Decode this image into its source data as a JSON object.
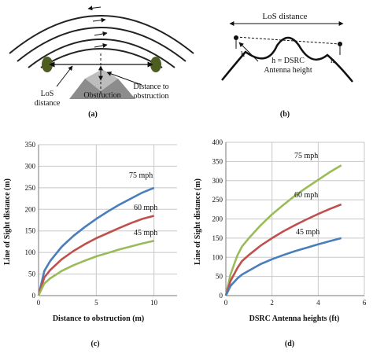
{
  "panel_a": {
    "los_distance_label": [
      "LoS",
      "distance"
    ],
    "obstruction_label": "Obstruction",
    "distance_to_obstruction_label": [
      "Distance to",
      "obstruction"
    ],
    "caption": "(a)"
  },
  "panel_b": {
    "los_distance_label": "LoS distance",
    "h_left": "h",
    "h_right": "h",
    "antenna_label": [
      "h = DSRC",
      "Antenna height"
    ],
    "caption": "(b)"
  },
  "chart_data": [
    {
      "type": "line",
      "panel": "(c)",
      "title": "",
      "xlabel": "Distance to obstruction (m)",
      "ylabel": "Line of Sight distance (m)",
      "xlim": [
        0,
        12
      ],
      "ylim": [
        0,
        350
      ],
      "xticks": [
        0,
        5,
        10
      ],
      "yticks": [
        0,
        50,
        100,
        150,
        200,
        250,
        300,
        350
      ],
      "grid": true,
      "series": [
        {
          "name": "75 mph",
          "color": "#4a7ebb",
          "x": [
            0,
            0.5,
            1,
            2,
            3,
            4,
            5,
            6,
            7,
            8,
            9,
            10
          ],
          "y": [
            0,
            57,
            80,
            113,
            138,
            159,
            178,
            195,
            211,
            225,
            239,
            250
          ]
        },
        {
          "name": "60 mph",
          "color": "#c0504d",
          "x": [
            0,
            0.5,
            1,
            2,
            3,
            4,
            5,
            6,
            7,
            8,
            9,
            10
          ],
          "y": [
            0,
            42,
            59,
            84,
            103,
            119,
            133,
            145,
            157,
            168,
            178,
            185
          ]
        },
        {
          "name": "45 mph",
          "color": "#9bbb59",
          "x": [
            0,
            0.5,
            1,
            2,
            3,
            4,
            5,
            6,
            7,
            8,
            9,
            10
          ],
          "y": [
            0,
            28,
            40,
            57,
            70,
            81,
            91,
            99,
            107,
            114,
            121,
            127
          ]
        }
      ]
    },
    {
      "type": "line",
      "panel": "(d)",
      "title": "",
      "xlabel": "DSRC Antenna heights (ft)",
      "ylabel": "Line of Sight distance (m)",
      "xlim": [
        0,
        6
      ],
      "ylim": [
        0,
        400
      ],
      "xticks": [
        0,
        2,
        4,
        6
      ],
      "yticks": [
        0,
        50,
        100,
        150,
        200,
        250,
        300,
        350,
        400
      ],
      "grid": true,
      "series": [
        {
          "name": "75 mph",
          "color": "#9bbb59",
          "x": [
            0,
            0.2,
            0.5,
            0.7,
            1,
            1.5,
            2,
            2.5,
            3,
            3.5,
            4,
            4.5,
            5
          ],
          "y": [
            0,
            55,
            105,
            128,
            150,
            183,
            212,
            237,
            261,
            282,
            302,
            322,
            340
          ]
        },
        {
          "name": "60 mph",
          "color": "#c0504d",
          "x": [
            0,
            0.2,
            0.5,
            0.7,
            1,
            1.5,
            2,
            2.5,
            3,
            3.5,
            4,
            4.5,
            5
          ],
          "y": [
            0,
            38,
            72,
            90,
            106,
            130,
            150,
            168,
            184,
            199,
            213,
            226,
            238
          ]
        },
        {
          "name": "45 mph",
          "color": "#4a7ebb",
          "x": [
            0,
            0.2,
            0.5,
            0.7,
            1,
            1.5,
            2,
            2.5,
            3,
            3.5,
            4,
            4.5,
            5
          ],
          "y": [
            0,
            25,
            45,
            55,
            65,
            82,
            95,
            106,
            116,
            125,
            134,
            142,
            150
          ]
        }
      ]
    }
  ]
}
